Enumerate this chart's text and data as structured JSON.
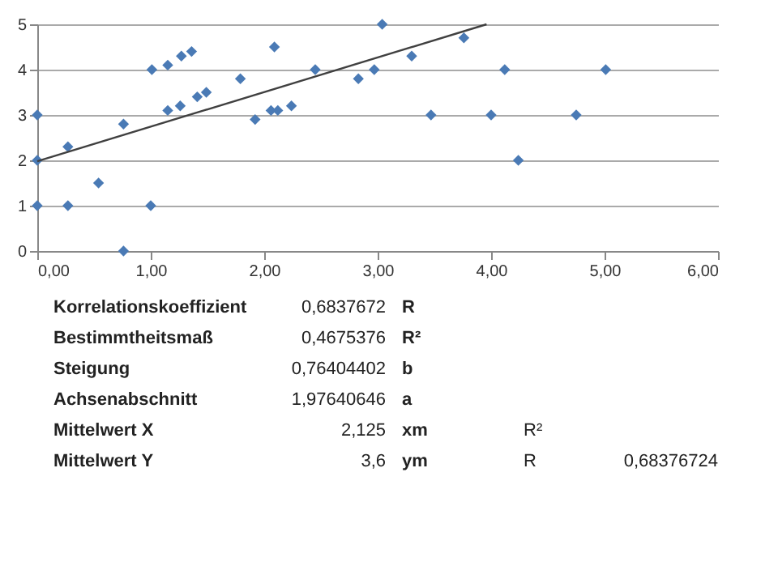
{
  "chart_data": {
    "type": "scatter",
    "xlim": [
      0,
      6
    ],
    "ylim": [
      0,
      5
    ],
    "xticks": [
      {
        "value": 0,
        "label": "0,00"
      },
      {
        "value": 1,
        "label": "1,00"
      },
      {
        "value": 2,
        "label": "2,00"
      },
      {
        "value": 3,
        "label": "3,00"
      },
      {
        "value": 4,
        "label": "4,00"
      },
      {
        "value": 5,
        "label": "5,00"
      },
      {
        "value": 6,
        "label": "6,00"
      }
    ],
    "yticks": [
      0,
      1,
      2,
      3,
      4,
      5
    ],
    "grid": "y",
    "series": [
      {
        "marker": "diamond",
        "color": "#4a7ab5",
        "x": [
          0,
          0,
          0,
          0.27,
          0.27,
          0.54,
          0.76,
          0.76,
          1.0,
          1.01,
          1.15,
          1.15,
          1.27,
          1.26,
          1.36,
          1.41,
          1.49,
          1.79,
          1.92,
          2.09,
          2.06,
          2.12,
          2.24,
          2.45,
          2.83,
          2.97,
          3.04,
          3.3,
          3.47,
          3.76,
          4.0,
          4.12,
          4.24,
          4.75,
          5.01
        ],
        "values": [
          3,
          2,
          1,
          2.3,
          1,
          1.5,
          2.8,
          0,
          1,
          4,
          4.1,
          3.1,
          4.3,
          3.2,
          4.4,
          3.4,
          3.5,
          3.8,
          2.9,
          4.5,
          3.1,
          3.1,
          3.2,
          4,
          3.8,
          4,
          5,
          4.3,
          3,
          4.7,
          3,
          4,
          2,
          3,
          4
        ]
      },
      {
        "type": "line",
        "marker": "none",
        "line_style": "solid",
        "color": "#404040",
        "x": [
          0,
          3.96
        ],
        "values": [
          1.98,
          5
        ]
      }
    ],
    "annotations": [
      "Korrelationskoeffizient",
      "Bestimmtheitsmaß",
      "Steigung",
      "Achsenabschnitt",
      "Mittelwert X",
      "Mittelwert Y",
      "0,6837672",
      "0,4675376",
      "0,76404402",
      "1,97640646",
      "2,125",
      "3,6",
      "R",
      "R²",
      "b",
      "a",
      "xm",
      "ym",
      "R²",
      "R",
      "0,68376724"
    ]
  }
}
